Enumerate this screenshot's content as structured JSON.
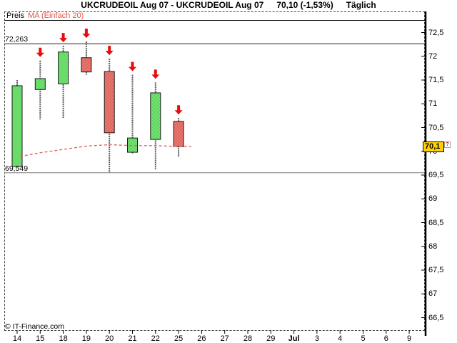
{
  "title": {
    "instrument": "UKCRUDEOIL Aug 07 - UKCRUDEOIL Aug 07",
    "quote": "70,10 (-1,53%)",
    "period": "Täglich"
  },
  "legend": {
    "price_label": "Preis",
    "ma_label": "MA (Einfach 20)"
  },
  "watermark": "© IT-Finance.com",
  "levels": [
    {
      "label": "72,263",
      "value": 72.263
    },
    {
      "label": "69,549",
      "value": 69.549
    }
  ],
  "price_axis": {
    "ticks": [
      {
        "label": "72,5",
        "value": 72.5
      },
      {
        "label": "72",
        "value": 72.0
      },
      {
        "label": "71,5",
        "value": 71.5
      },
      {
        "label": "71",
        "value": 71.0
      },
      {
        "label": "70,5",
        "value": 70.5
      },
      {
        "label": "70",
        "value": 70.0
      },
      {
        "label": "69,5",
        "value": 69.5
      },
      {
        "label": "69",
        "value": 69.0
      },
      {
        "label": "68,5",
        "value": 68.5
      },
      {
        "label": "68",
        "value": 68.0
      },
      {
        "label": "67,5",
        "value": 67.5
      },
      {
        "label": "67",
        "value": 67.0
      },
      {
        "label": "66,5",
        "value": 66.5
      }
    ],
    "badge": {
      "text": "70,1",
      "value": 70.1
    }
  },
  "time_axis": {
    "labels": [
      {
        "label": "14",
        "bold": false
      },
      {
        "label": "15",
        "bold": false
      },
      {
        "label": "18",
        "bold": false
      },
      {
        "label": "19",
        "bold": false
      },
      {
        "label": "20",
        "bold": false
      },
      {
        "label": "21",
        "bold": false
      },
      {
        "label": "22",
        "bold": false
      },
      {
        "label": "25",
        "bold": false
      },
      {
        "label": "26",
        "bold": false
      },
      {
        "label": "27",
        "bold": false
      },
      {
        "label": "28",
        "bold": false
      },
      {
        "label": "29",
        "bold": false
      },
      {
        "label": "Jul",
        "bold": true
      },
      {
        "label": "3",
        "bold": false
      },
      {
        "label": "4",
        "bold": false
      },
      {
        "label": "5",
        "bold": false
      },
      {
        "label": "6",
        "bold": false
      },
      {
        "label": "9",
        "bold": false
      }
    ]
  },
  "chart_data": {
    "type": "candlestick",
    "title": "UKCRUDEOIL Aug 07, Täglich (daily)",
    "ylim": [
      66.2,
      72.95
    ],
    "grid": false,
    "legend_position": "top-left",
    "categories": [
      "14",
      "15",
      "18",
      "19",
      "20",
      "21",
      "22",
      "25",
      "26",
      "27",
      "28",
      "29",
      "Jul",
      "3",
      "4",
      "5",
      "6",
      "9"
    ],
    "candles": [
      {
        "date": "14",
        "open": 69.68,
        "high": 71.5,
        "low": 69.68,
        "close": 71.38,
        "arrow": false
      },
      {
        "date": "15",
        "open": 71.3,
        "high": 71.91,
        "low": 70.67,
        "close": 71.53,
        "arrow": true
      },
      {
        "date": "18",
        "open": 71.42,
        "high": 72.22,
        "low": 70.69,
        "close": 72.09,
        "arrow": true
      },
      {
        "date": "19",
        "open": 71.97,
        "high": 72.31,
        "low": 71.61,
        "close": 71.67,
        "arrow": true
      },
      {
        "date": "20",
        "open": 71.68,
        "high": 71.95,
        "low": 69.55,
        "close": 70.39,
        "arrow": true
      },
      {
        "date": "21",
        "open": 69.98,
        "high": 71.61,
        "low": 69.95,
        "close": 70.28,
        "arrow": true
      },
      {
        "date": "22",
        "open": 70.25,
        "high": 71.45,
        "low": 69.62,
        "close": 71.23,
        "arrow": true
      },
      {
        "date": "25",
        "open": 70.63,
        "high": 70.7,
        "low": 69.88,
        "close": 70.1,
        "arrow": true
      }
    ],
    "series": [
      {
        "name": "MA (Einfach 20)",
        "values": [
          69.89,
          69.97,
          70.04,
          70.11,
          70.14,
          70.12,
          70.12,
          70.1
        ]
      }
    ]
  },
  "colors": {
    "up_candle": "#55d155",
    "up_candle_alt": "#7fe67f",
    "down_candle": "#ec837b",
    "down_candle_alt": "#da5b52",
    "candle_border": "#1b1b1b",
    "wick": "#5a5a5a",
    "arrow": "#e50e0e",
    "ma_line": "#dd6a62",
    "level_top": "#222222",
    "level_bottom": "#7a7a7a",
    "badge_bg": "#ffd200"
  }
}
